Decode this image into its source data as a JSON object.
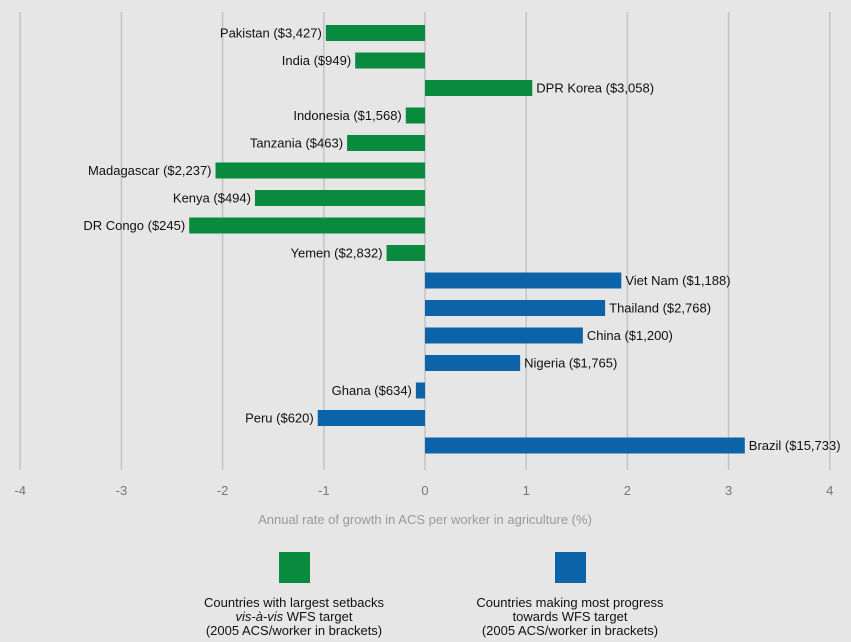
{
  "chart_data": {
    "type": "bar",
    "orientation": "horizontal",
    "xlabel": "Annual rate of growth in ACS per worker in agriculture (%)",
    "ylabel": "",
    "xlim": [
      -4,
      4
    ],
    "xticks": [
      "-4",
      "-3",
      "-2",
      "-1",
      "0",
      "1",
      "2",
      "3",
      "4"
    ],
    "grid": "vertical",
    "colors": {
      "setbacks": "#0a8a3e",
      "progress": "#0d63a8",
      "grid": "#c4c4c4",
      "tick_text": "#777777",
      "label_text": "#111111"
    },
    "bars": [
      {
        "label": "Pakistan ($3,427)",
        "value": -0.98,
        "group": "setbacks"
      },
      {
        "label": "India ($949)",
        "value": -0.69,
        "group": "setbacks"
      },
      {
        "label": "DPR Korea ($3,058)",
        "value": 1.06,
        "group": "setbacks"
      },
      {
        "label": "Indonesia ($1,568)",
        "value": -0.19,
        "group": "setbacks"
      },
      {
        "label": "Tanzania ($463)",
        "value": -0.77,
        "group": "setbacks"
      },
      {
        "label": "Madagascar ($2,237)",
        "value": -2.07,
        "group": "setbacks"
      },
      {
        "label": "Kenya ($494)",
        "value": -1.68,
        "group": "setbacks"
      },
      {
        "label": "DR Congo ($245)",
        "value": -2.33,
        "group": "setbacks"
      },
      {
        "label": "Yemen ($2,832)",
        "value": -0.38,
        "group": "setbacks"
      },
      {
        "label": "Viet Nam ($1,188)",
        "value": 1.94,
        "group": "progress"
      },
      {
        "label": "Thailand ($2,768)",
        "value": 1.78,
        "group": "progress"
      },
      {
        "label": "China ($1,200)",
        "value": 1.56,
        "group": "progress"
      },
      {
        "label": "Nigeria ($1,765)",
        "value": 0.94,
        "group": "progress"
      },
      {
        "label": "Ghana ($634)",
        "value": -0.09,
        "group": "progress"
      },
      {
        "label": "Peru ($620)",
        "value": -1.06,
        "group": "progress"
      },
      {
        "label": "Brazil ($15,733)",
        "value": 3.16,
        "group": "progress"
      }
    ]
  },
  "legend": {
    "setbacks": {
      "line1": "Countries with largest setbacks",
      "line2_italic": "vis-à-vis",
      "line2_rest": " WFS target",
      "line3": "(2005 ACS/worker in brackets)"
    },
    "progress": {
      "line1": "Countries making most progress",
      "line2": "towards WFS target",
      "line3": "(2005 ACS/worker in brackets)"
    }
  }
}
